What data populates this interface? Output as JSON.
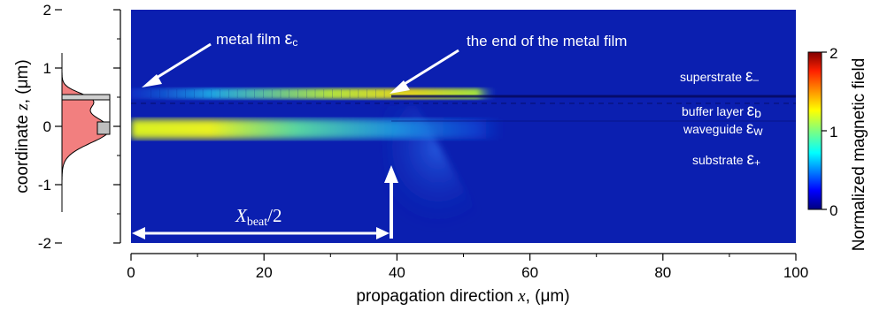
{
  "chart_data": {
    "type": "heatmap",
    "title": "",
    "xlabel": "propagation direction",
    "xlabel_var": "x",
    "xlabel_unit": ", (μm)",
    "ylabel": "coordinate",
    "ylabel_var": "z",
    "ylabel_unit": ", (μm)",
    "xlim": [
      0,
      100
    ],
    "ylim": [
      -2,
      2
    ],
    "x_ticks": [
      "0",
      "20",
      "40",
      "60",
      "80",
      "100"
    ],
    "x_tick_values": [
      0,
      20,
      40,
      60,
      80,
      100
    ],
    "y_ticks": [
      "2",
      "1",
      "0",
      "-1",
      "-2"
    ],
    "y_tick_values": [
      2,
      1,
      0,
      -1,
      -2
    ],
    "colorbar": {
      "label": "Normalized magnetic field",
      "ticks": [
        "2",
        "1",
        "0"
      ],
      "tick_values": [
        2,
        1,
        0
      ],
      "range": [
        0,
        2
      ],
      "colormap": "jet"
    },
    "metal_film": {
      "z": 0.5,
      "x_end": 39
    },
    "layers": [
      {
        "name": "superstrate",
        "symbol": "ε",
        "sub": "–",
        "z": 0.5
      },
      {
        "name": "buffer layer",
        "symbol": "ε",
        "sub": "b",
        "z": 0.35
      },
      {
        "name": "waveguide",
        "symbol": "ε",
        "sub": "w",
        "z": 0.0
      },
      {
        "name": "substrate",
        "symbol": "ε",
        "sub": "+",
        "z": -0.35
      }
    ],
    "annotations": {
      "metal_film": {
        "text": "metal film",
        "symbol": "ε",
        "sub": "c"
      },
      "film_end": {
        "text": "the end of the metal film"
      },
      "beat": {
        "var": "X",
        "sub": "beat",
        "suffix": "/2",
        "x_from": 0,
        "x_to": 39
      }
    },
    "mode_profile": {
      "waveguide_peak_z": -0.05,
      "film_peak_z": 0.45
    },
    "colors": {
      "background": "#0b1fb0",
      "profile_fill": "#f06868",
      "arrow": "#ffffff"
    }
  }
}
